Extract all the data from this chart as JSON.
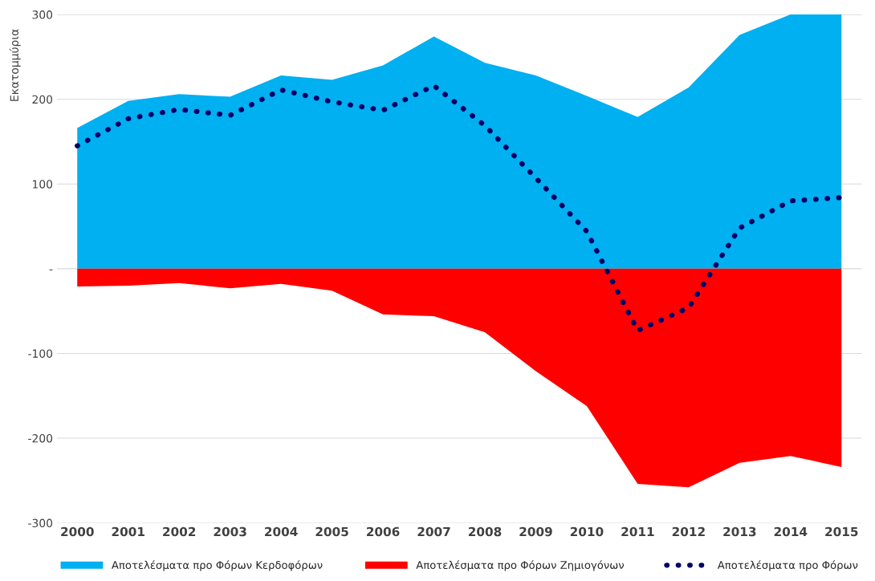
{
  "chart_data": {
    "type": "area",
    "ylabel": "Εκατομμύρια",
    "categories": [
      "2000",
      "2001",
      "2002",
      "2003",
      "2004",
      "2005",
      "2006",
      "2007",
      "2008",
      "2009",
      "2010",
      "2011",
      "2012",
      "2013",
      "2014",
      "2015"
    ],
    "series": [
      {
        "name": "Αποτελέσματα προ Φόρων Κερδοφόρων",
        "color": "#00b0f0",
        "values": [
          166,
          198,
          206,
          203,
          228,
          223,
          240,
          274,
          243,
          228,
          204,
          179,
          214,
          276,
          300,
          300
        ]
      },
      {
        "name": "Αποτελέσματα προ Φόρων Ζημιογόνων",
        "color": "#ff0000",
        "values": [
          -21,
          -20,
          -17,
          -23,
          -18,
          -26,
          -54,
          -56,
          -75,
          -121,
          -162,
          -254,
          -258,
          -229,
          -221,
          -234
        ]
      },
      {
        "name": "Αποτελέσματα προ Φόρων",
        "type": "line",
        "color": "#000066",
        "line_style": "dotted",
        "values": [
          145,
          177,
          188,
          181,
          211,
          197,
          187,
          216,
          169,
          107,
          44,
          -73,
          -46,
          48,
          80,
          84
        ]
      }
    ],
    "ylim": [
      -300,
      300
    ],
    "yticks": [
      300,
      200,
      100,
      {
        "value": 0,
        "label": "-"
      },
      -100,
      -200,
      -300
    ],
    "grid": "y",
    "legend": "bottom"
  }
}
